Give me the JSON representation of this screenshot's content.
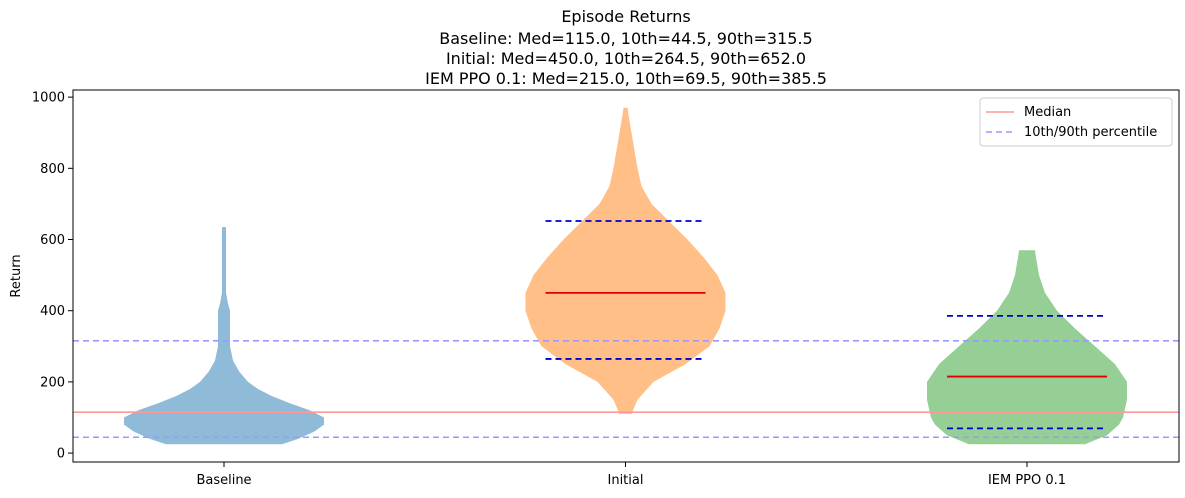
{
  "chart_data": {
    "type": "violin",
    "title_lines": [
      "Episode Returns",
      "Baseline: Med=115.0, 10th=44.5, 90th=315.5",
      "Initial: Med=450.0, 10th=264.5, 90th=652.0",
      "IEM PPO 0.1: Med=215.0, 10th=69.5, 90th=385.5"
    ],
    "xlabel": "",
    "ylabel": "Return",
    "ylim": [
      -25,
      1020
    ],
    "yticks": [
      0,
      200,
      400,
      600,
      800,
      1000
    ],
    "grid": false,
    "legend": {
      "position": "top-right",
      "entries": [
        {
          "label": "Median",
          "style": "solid",
          "color": "#ff9999"
        },
        {
          "label": "10th/90th percentile",
          "style": "dashed",
          "color": "#9999ff"
        }
      ]
    },
    "reference_lines": {
      "median": 115.0,
      "p10": 44.5,
      "p90": 315.5
    },
    "categories": [
      "Baseline",
      "Initial",
      "IEM PPO 0.1"
    ],
    "series": [
      {
        "name": "Baseline",
        "color": "#1f77b4",
        "median": 115.0,
        "p10": 44.5,
        "p90": 315.5,
        "show_markers": false,
        "profile": [
          [
            25,
            0.29
          ],
          [
            40,
            0.37
          ],
          [
            60,
            0.45
          ],
          [
            80,
            0.5
          ],
          [
            100,
            0.5
          ],
          [
            120,
            0.43
          ],
          [
            140,
            0.33
          ],
          [
            160,
            0.24
          ],
          [
            180,
            0.17
          ],
          [
            200,
            0.12
          ],
          [
            230,
            0.075
          ],
          [
            260,
            0.045
          ],
          [
            300,
            0.03
          ],
          [
            350,
            0.03
          ],
          [
            400,
            0.03
          ],
          [
            420,
            0.02
          ],
          [
            450,
            0.01
          ],
          [
            520,
            0.01
          ],
          [
            600,
            0.01
          ],
          [
            635,
            0.01
          ]
        ]
      },
      {
        "name": "Initial",
        "color": "#ff7f0e",
        "median": 450.0,
        "p10": 264.5,
        "p90": 652.0,
        "show_markers": true,
        "profile": [
          [
            110,
            0.03
          ],
          [
            150,
            0.06
          ],
          [
            200,
            0.14
          ],
          [
            250,
            0.3
          ],
          [
            300,
            0.42
          ],
          [
            350,
            0.47
          ],
          [
            400,
            0.5
          ],
          [
            450,
            0.5
          ],
          [
            500,
            0.46
          ],
          [
            550,
            0.39
          ],
          [
            600,
            0.31
          ],
          [
            650,
            0.22
          ],
          [
            700,
            0.13
          ],
          [
            750,
            0.08
          ],
          [
            800,
            0.06
          ],
          [
            850,
            0.045
          ],
          [
            900,
            0.03
          ],
          [
            950,
            0.015
          ],
          [
            970,
            0.01
          ]
        ]
      },
      {
        "name": "IEM PPO 0.1",
        "color": "#2ca02c",
        "median": 215.0,
        "p10": 69.5,
        "p90": 385.5,
        "show_markers": true,
        "profile": [
          [
            25,
            0.29
          ],
          [
            50,
            0.4
          ],
          [
            80,
            0.46
          ],
          [
            100,
            0.48
          ],
          [
            150,
            0.5
          ],
          [
            200,
            0.5
          ],
          [
            250,
            0.44
          ],
          [
            300,
            0.34
          ],
          [
            350,
            0.24
          ],
          [
            400,
            0.15
          ],
          [
            450,
            0.09
          ],
          [
            500,
            0.06
          ],
          [
            550,
            0.045
          ],
          [
            570,
            0.04
          ]
        ]
      }
    ]
  }
}
